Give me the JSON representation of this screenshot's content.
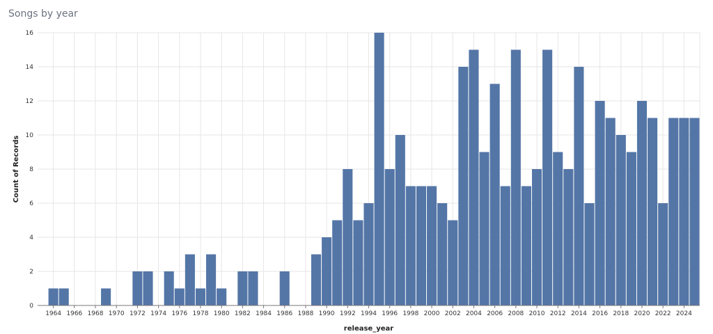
{
  "header": {
    "title": "Songs by year"
  },
  "chart_data": {
    "type": "bar",
    "title": "Songs by year",
    "xlabel": "release_year",
    "ylabel": "Count of Records",
    "bar_color": "#5476a7",
    "grid_color": "#e6e6e6",
    "x_ticks": [
      1964,
      1966,
      1968,
      1970,
      1972,
      1974,
      1976,
      1978,
      1980,
      1982,
      1984,
      1986,
      1988,
      1990,
      1992,
      1994,
      1996,
      1998,
      2000,
      2002,
      2004,
      2006,
      2008,
      2010,
      2012,
      2014,
      2016,
      2018,
      2020,
      2022,
      2024
    ],
    "y_ticks": [
      0,
      2,
      4,
      6,
      8,
      10,
      12,
      14,
      16
    ],
    "ylim": [
      0,
      16
    ],
    "xlim": [
      1963,
      2026
    ],
    "categories": [
      1964,
      1965,
      1969,
      1972,
      1973,
      1975,
      1976,
      1977,
      1978,
      1979,
      1980,
      1982,
      1983,
      1986,
      1989,
      1990,
      1991,
      1992,
      1993,
      1994,
      1995,
      1996,
      1997,
      1998,
      1999,
      2000,
      2001,
      2002,
      2003,
      2004,
      2005,
      2006,
      2007,
      2008,
      2009,
      2010,
      2011,
      2012,
      2013,
      2014,
      2015,
      2016,
      2017,
      2018,
      2019,
      2020,
      2021,
      2022,
      2023,
      2024,
      2025
    ],
    "values": [
      1,
      1,
      1,
      2,
      2,
      2,
      1,
      3,
      1,
      3,
      1,
      2,
      2,
      2,
      3,
      4,
      5,
      8,
      5,
      6,
      16,
      8,
      10,
      7,
      7,
      7,
      6,
      5,
      14,
      15,
      9,
      13,
      7,
      15,
      7,
      8,
      15,
      9,
      8,
      14,
      6,
      12,
      11,
      10,
      9,
      12,
      11,
      6,
      11,
      11,
      11
    ],
    "grid": true,
    "legend": "none"
  }
}
